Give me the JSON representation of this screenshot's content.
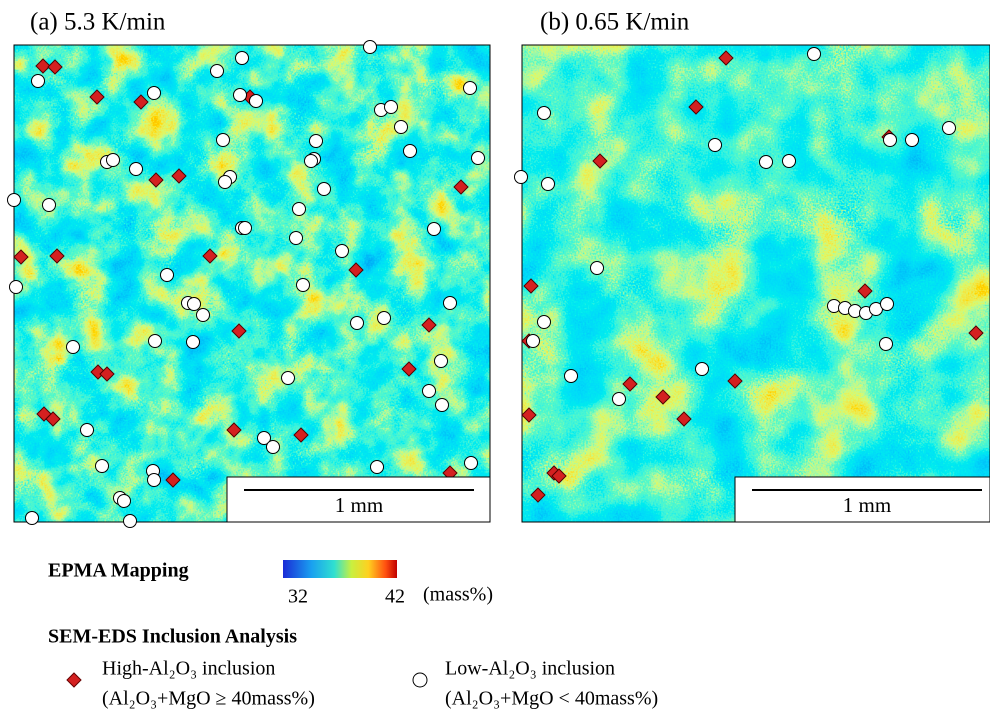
{
  "panels": [
    {
      "title": "(a) 5.3 K/min",
      "scale_bar": "1 mm"
    },
    {
      "title": "(b) 0.65 K/min",
      "scale_bar": "1 mm"
    }
  ],
  "colorbar": {
    "title": "EPMA Mapping",
    "min": 32,
    "max": 42,
    "unit": "(mass%)"
  },
  "legend": {
    "title": "SEM-EDS Inclusion Analysis",
    "items": [
      {
        "label": "High-Al₂O₃ inclusion",
        "condition": "(Al₂O₃+MgO ≥ 40mass%)"
      },
      {
        "label": "Low-Al₂O₃ inclusion",
        "condition": "(Al₂O₃+MgO < 40mass%)"
      }
    ]
  }
}
